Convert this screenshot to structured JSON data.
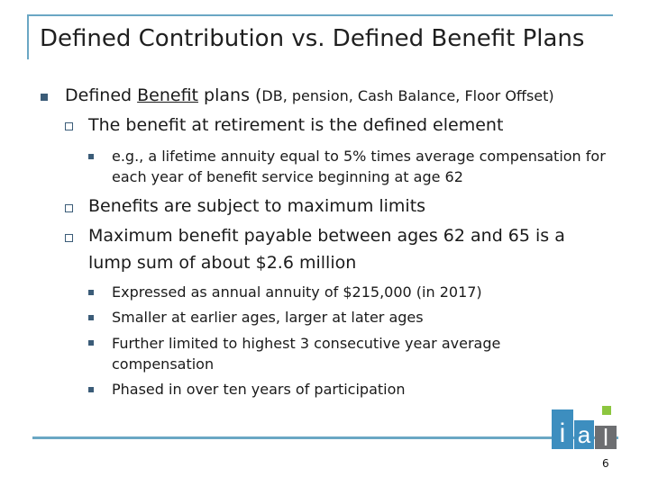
{
  "title": "Defined Contribution vs. Defined Benefit Plans",
  "bullet1": {
    "prefix": "Defined ",
    "underlined": "Benefit",
    "suffix": " plans (",
    "small": "DB, pension, Cash Balance, Floor Offset)"
  },
  "sub1": "The benefit at retirement is the defined element",
  "sub1_detail_line1": "e.g., a lifetime annuity equal to 5% times average compensation for",
  "sub1_detail_line2": "each year of benefit service beginning at age 62",
  "sub2": "Benefits are subject to maximum limits",
  "sub3_line1": "Maximum benefit payable between ages 62 and 65 is a",
  "sub3_line2": "lump sum of about $2.6 million",
  "details": [
    "Expressed as annual annuity of $215,000 (in 2017)",
    "Smaller at earlier ages, larger at later ages",
    "Further limited to highest 3 consecutive year average",
    "compensation",
    "Phased in over ten years of participation"
  ],
  "logo_letters": [
    "i",
    "a",
    "l"
  ],
  "page_number": "6",
  "colors": {
    "accent": "#6aa7c4",
    "bullet": "#3b5c78",
    "logo_blue": "#3d8ebf",
    "logo_green": "#8cc63f",
    "logo_gray": "#6d6e71"
  }
}
